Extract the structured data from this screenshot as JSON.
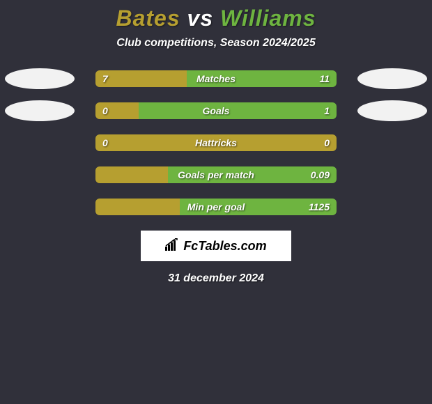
{
  "title": {
    "player1": "Bates",
    "vs": " vs ",
    "player2": "Williams",
    "player1_color": "#b69f30",
    "player2_color": "#6eb440"
  },
  "subtitle": "Club competitions, Season 2024/2025",
  "colors": {
    "background": "#30303a",
    "bar_left": "#b69f30",
    "bar_right": "#6eb440",
    "ellipse_left": "#f2f2f2",
    "ellipse_right": "#f2f2f2",
    "text": "#ffffff"
  },
  "rows": [
    {
      "label": "Matches",
      "left_val": "7",
      "right_val": "11",
      "left_pct": 38,
      "right_pct": 62,
      "show_left_ellipse": true,
      "show_right_ellipse": true
    },
    {
      "label": "Goals",
      "left_val": "0",
      "right_val": "1",
      "left_pct": 18,
      "right_pct": 82,
      "show_left_ellipse": true,
      "show_right_ellipse": true
    },
    {
      "label": "Hattricks",
      "left_val": "0",
      "right_val": "0",
      "left_pct": 100,
      "right_pct": 0,
      "show_left_ellipse": false,
      "show_right_ellipse": false
    },
    {
      "label": "Goals per match",
      "left_val": "",
      "right_val": "0.09",
      "left_pct": 30,
      "right_pct": 70,
      "show_left_ellipse": false,
      "show_right_ellipse": false
    },
    {
      "label": "Min per goal",
      "left_val": "",
      "right_val": "1125",
      "left_pct": 35,
      "right_pct": 65,
      "show_left_ellipse": false,
      "show_right_ellipse": false
    }
  ],
  "brand": "FcTables.com",
  "date": "31 december 2024"
}
